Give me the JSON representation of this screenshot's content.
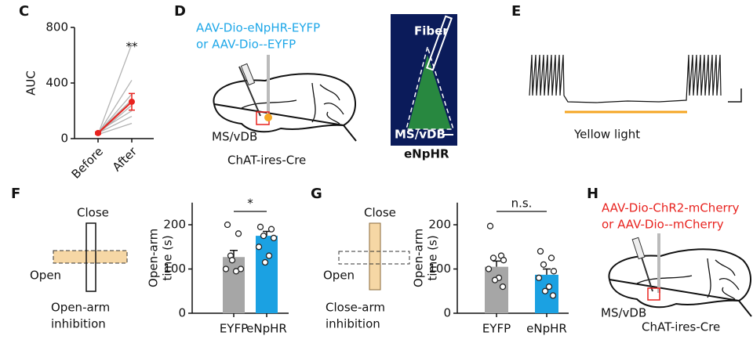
{
  "panels": [
    "C",
    "D",
    "E",
    "F",
    "G",
    "H"
  ],
  "panel_d": {
    "virus": [
      "AAV-Dio-eNpHR-EYFP",
      "or AAV-Dio--EYFP"
    ],
    "region": "MS/vDB",
    "mouse": "ChAT-ires-Cre",
    "fiber": "Fiber",
    "image_region": "MS/vDB",
    "image_label": "eNpHR"
  },
  "panel_e": {
    "stimulus": "Yellow light"
  },
  "panel_f": {
    "close": "Close",
    "open": "Open",
    "condition": [
      "Open-arm",
      "inhibition"
    ]
  },
  "panel_g": {
    "close": "Close",
    "open": "Open",
    "condition": [
      "Close-arm",
      "inhibition"
    ]
  },
  "panel_h": {
    "virus": [
      "AAV-Dio-ChR2-mCherry",
      "or AAV-Dio--mCherry"
    ],
    "region": "MS/vDB",
    "mouse": "ChAT-ires-Cre"
  },
  "chart_data": [
    {
      "type": "line",
      "ylabel": [
        "AUC"
      ],
      "categories": [
        "Before",
        "After"
      ],
      "ylim": [
        0,
        800
      ],
      "yticks": [
        0,
        400,
        800
      ],
      "annotation": "**",
      "series": [
        {
          "color": "#b3b3b3",
          "values": [
            30,
            680
          ]
        },
        {
          "color": "#b3b3b3",
          "values": [
            35,
            420
          ]
        },
        {
          "color": "#b3b3b3",
          "values": [
            40,
            320
          ]
        },
        {
          "color": "#b3b3b3",
          "values": [
            45,
            280
          ]
        },
        {
          "color": "#b3b3b3",
          "values": [
            35,
            240
          ]
        },
        {
          "color": "#b3b3b3",
          "values": [
            50,
            200
          ]
        },
        {
          "color": "#b3b3b3",
          "values": [
            40,
            160
          ]
        },
        {
          "color": "#b3b3b3",
          "values": [
            30,
            110
          ]
        },
        {
          "color": "#e8231f",
          "values": [
            40,
            265
          ],
          "errors": [
            8,
            60
          ]
        }
      ]
    },
    {
      "type": "bar",
      "ylabel": [
        "Open-arm",
        "time (s)"
      ],
      "categories": [
        "EYFP",
        "eNpHR"
      ],
      "values": [
        127,
        175
      ],
      "errors": [
        15,
        10
      ],
      "colors": [
        "#a6a6a6",
        "#1ba1e2"
      ],
      "points": [
        [
          200,
          180,
          130,
          100,
          100,
          95,
          120
        ],
        [
          195,
          190,
          175,
          170,
          150,
          130,
          115
        ]
      ],
      "ylim": [
        0,
        250
      ],
      "yticks": [
        0,
        100,
        200
      ],
      "annotation": "*"
    },
    {
      "type": "bar",
      "ylabel": [
        "Open-arm",
        "time (s)"
      ],
      "categories": [
        "EYFP",
        "eNpHR"
      ],
      "values": [
        105,
        87
      ],
      "errors": [
        13,
        13
      ],
      "colors": [
        "#a6a6a6",
        "#1ba1e2"
      ],
      "points": [
        [
          197,
          130,
          125,
          120,
          100,
          80,
          75,
          60
        ],
        [
          140,
          125,
          110,
          95,
          80,
          60,
          50,
          40
        ]
      ],
      "ylim": [
        0,
        250
      ],
      "yticks": [
        0,
        100,
        200
      ],
      "annotation": "n.s."
    }
  ]
}
